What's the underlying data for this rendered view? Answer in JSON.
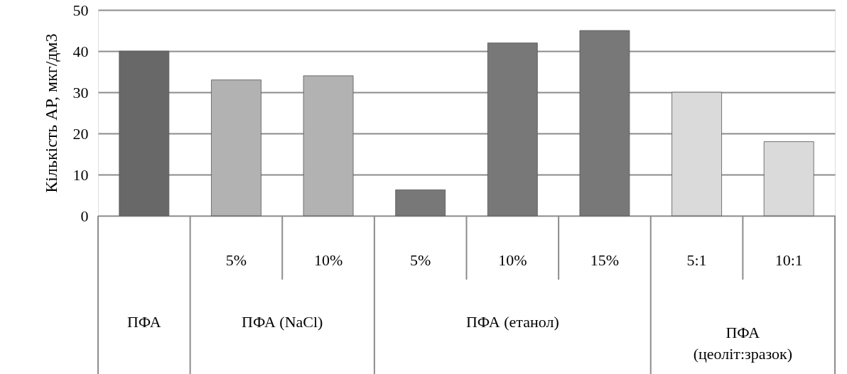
{
  "chart_data": {
    "type": "bar",
    "ylabel": "Кількість АР, мкг/дм3",
    "categories": [
      null,
      "5%",
      "10%",
      "5%",
      "10%",
      "15%",
      "5:1",
      "10:1"
    ],
    "values": [
      40,
      33,
      34,
      6.3,
      42,
      45,
      30,
      18
    ],
    "colors": [
      "#686868",
      "#b2b2b2",
      "#b2b2b2",
      "#787878",
      "#787878",
      "#787878",
      "#dadada",
      "#dadada"
    ],
    "annotations": [
      "ПФА",
      "ПФА (NaCl)",
      "ПФА (етанол)",
      "ПФА (цеоліт:зразок)"
    ],
    "ylim": [
      0,
      50
    ],
    "yticks": [
      0,
      10,
      20,
      30,
      40,
      50
    ],
    "grid": true
  }
}
